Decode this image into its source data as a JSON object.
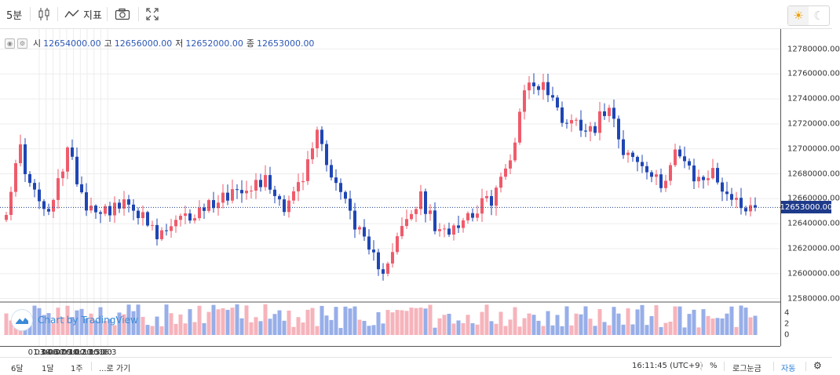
{
  "toolbar": {
    "interval": "5분",
    "indicators_label": "지표",
    "candle_icon": "candlestick-icon",
    "indicator_icon": "indicator-wave-icon",
    "camera_icon": "camera-icon",
    "fullscreen_icon": "fullscreen-icon",
    "theme_light_icon": "sun-icon",
    "theme_dark_icon": "moon-icon"
  },
  "legend": {
    "open_label": "시",
    "open": "12654000.00",
    "high_label": "고",
    "high": "12656000.00",
    "low_label": "저",
    "low": "12652000.00",
    "close_label": "종",
    "close": "12653000.00"
  },
  "watermark": "Chart by TradingView",
  "bottom_bar": {
    "range_6d": "6달",
    "range_1d": "1달",
    "range_1w": "1주",
    "goto": "...로 가기",
    "clock": "16:11:45 (UTC+9)",
    "percent": "%",
    "log": "로그눈금",
    "auto": "자동",
    "settings_icon": "gear-icon"
  },
  "colors": {
    "up": "#ef5b6b",
    "down": "#1f46b4",
    "vol_up": "#f6b3bb",
    "vol_down": "#97aee8",
    "price_line": "#1e3a8a"
  },
  "chart_data": {
    "type": "candlestick",
    "current_price": "12653000.00",
    "price_ticks": [
      "12780000.00",
      "12760000.00",
      "12740000.00",
      "12720000.00",
      "12700000.00",
      "12680000.00",
      "12660000.00",
      "12640000.00",
      "12620000.00",
      "12600000.00",
      "12580000.00"
    ],
    "volume_ticks": [
      "4",
      "2",
      "0"
    ],
    "time_ticks": [
      "01:30",
      "03:00",
      "04:30",
      "06:00",
      "07:30",
      "09:00",
      "10:30",
      "12:00",
      "13:30",
      "15:00",
      "16:3"
    ],
    "ylim": [
      12580000,
      12790000
    ],
    "volume_ylim": [
      0,
      6
    ],
    "anchors": [
      [
        0,
        12653000
      ],
      [
        3,
        12700000
      ],
      [
        5,
        12670000
      ],
      [
        9,
        12645000
      ],
      [
        13,
        12700000
      ],
      [
        17,
        12655000
      ],
      [
        21,
        12652000
      ],
      [
        27,
        12655000
      ],
      [
        32,
        12628000
      ],
      [
        36,
        12640000
      ],
      [
        40,
        12648000
      ],
      [
        45,
        12660000
      ],
      [
        50,
        12670000
      ],
      [
        55,
        12675000
      ],
      [
        59,
        12655000
      ],
      [
        63,
        12675000
      ],
      [
        66,
        12715000
      ],
      [
        69,
        12680000
      ],
      [
        73,
        12650000
      ],
      [
        77,
        12615000
      ],
      [
        80,
        12605000
      ],
      [
        84,
        12635000
      ],
      [
        88,
        12660000
      ],
      [
        92,
        12630000
      ],
      [
        95,
        12640000
      ],
      [
        99,
        12650000
      ],
      [
        103,
        12660000
      ],
      [
        107,
        12690000
      ],
      [
        110,
        12750000
      ],
      [
        114,
        12752000
      ],
      [
        118,
        12725000
      ],
      [
        122,
        12720000
      ],
      [
        125,
        12718000
      ],
      [
        128,
        12738000
      ],
      [
        131,
        12700000
      ],
      [
        135,
        12685000
      ],
      [
        139,
        12670000
      ],
      [
        142,
        12700000
      ],
      [
        146,
        12675000
      ],
      [
        150,
        12680000
      ],
      [
        154,
        12660000
      ],
      [
        157,
        12655000
      ],
      [
        159,
        12653000
      ]
    ]
  }
}
